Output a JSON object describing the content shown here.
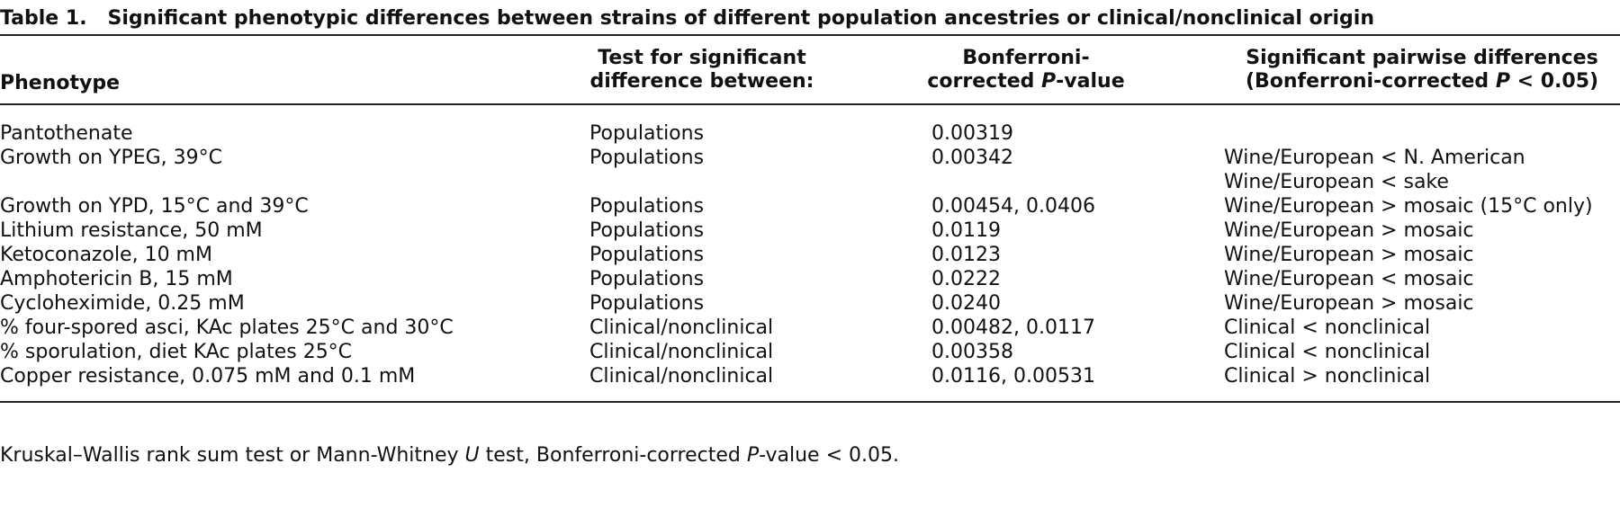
{
  "table": {
    "label": "Table 1.",
    "title": "Significant phenotypic differences between strains of different population ancestries or clinical/nonclinical origin",
    "header": {
      "phenotype": "Phenotype",
      "test": [
        "Test for significant",
        "difference between:"
      ],
      "p_value": [
        "Bonferroni-",
        "corrected ",
        "P",
        "-value"
      ],
      "differences": [
        "Significant pairwise differences",
        "(Bonferroni-corrected ",
        "P",
        " < 0.05)"
      ]
    },
    "rows": [
      {
        "phenotype": "Pantothenate",
        "test": "Populations",
        "p_value": "0.00319"
      },
      {
        "phenotype": "Growth on YPEG, 39°C",
        "test": "Populations",
        "p_value": "0.00342",
        "differences": [
          "Wine/European < N. American",
          "Wine/European < sake"
        ]
      },
      {
        "phenotype": "Growth on YPD, 15°C and 39°C",
        "test": "Populations",
        "p_value": "0.00454, 0.0406",
        "differences": [
          "Wine/European > mosaic (15°C only)"
        ]
      },
      {
        "phenotype": "Lithium resistance, 50 mM",
        "test": "Populations",
        "p_value": "0.0119",
        "differences": [
          "Wine/European > mosaic"
        ]
      },
      {
        "phenotype": "Ketoconazole, 10 mM",
        "test": "Populations",
        "p_value": "0.0123",
        "differences": [
          "Wine/European > mosaic"
        ]
      },
      {
        "phenotype": "Amphotericin B, 15 mM",
        "test": "Populations",
        "p_value": "0.0222",
        "differences": [
          "Wine/European < mosaic"
        ]
      },
      {
        "phenotype": "Cycloheximide, 0.25 mM",
        "test": "Populations",
        "p_value": "0.0240",
        "differences": [
          "Wine/European > mosaic"
        ]
      },
      {
        "phenotype": "% four-spored asci, KAc plates 25°C and 30°C",
        "test": "Clinical/nonclinical",
        "p_value": "0.00482, 0.0117",
        "differences": [
          "Clinical < nonclinical"
        ]
      },
      {
        "phenotype": "% sporulation, diet KAc plates 25°C",
        "test": "Clinical/nonclinical",
        "p_value": "0.00358",
        "differences": [
          "Clinical < nonclinical"
        ]
      },
      {
        "phenotype": "Copper resistance, 0.075 mM and 0.1 mM",
        "test": "Clinical/nonclinical",
        "p_value": "0.0116, 0.00531",
        "differences": [
          "Clinical > nonclinical"
        ]
      }
    ],
    "footnote": [
      "Kruskal–Wallis rank sum test or Mann-Whitney ",
      "U",
      " test, Bonferroni-corrected ",
      "P",
      "-value < 0.05."
    ]
  }
}
